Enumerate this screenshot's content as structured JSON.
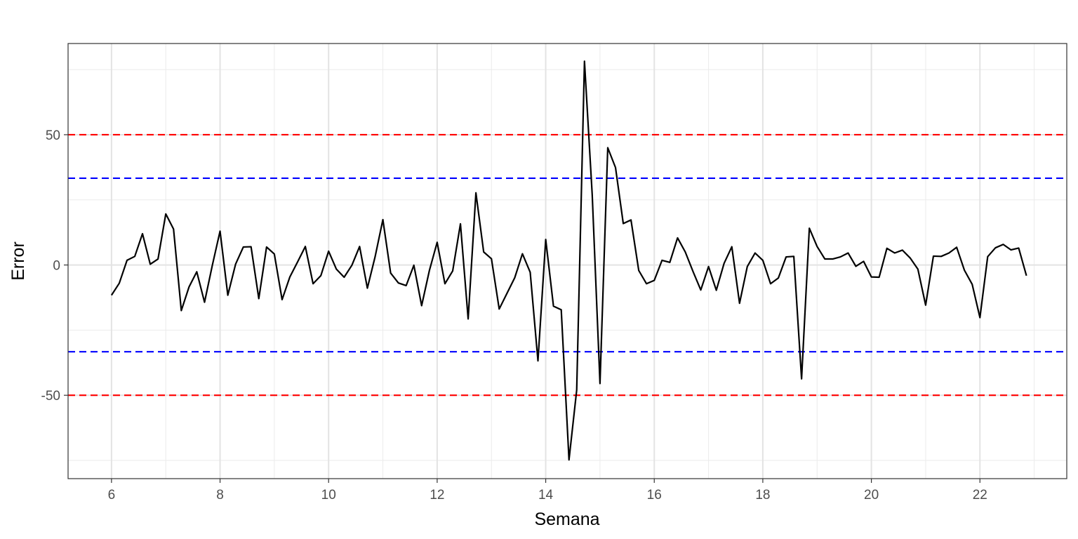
{
  "chart_data": {
    "type": "line",
    "title": "",
    "xlabel": "Semana",
    "ylabel": "Error",
    "xlim": [
      5.2,
      23.6
    ],
    "ylim": [
      -82,
      85
    ],
    "x_ticks": [
      6,
      8,
      10,
      12,
      14,
      16,
      18,
      20,
      22
    ],
    "y_ticks": [
      -50,
      0,
      50
    ],
    "grid": true,
    "legend": "none",
    "series": [
      {
        "color": "#000000",
        "x": [
          6.0,
          6.143,
          6.286,
          6.429,
          6.571,
          6.714,
          6.857,
          7.0,
          7.143,
          7.286,
          7.429,
          7.571,
          7.714,
          7.857,
          8.0,
          8.143,
          8.286,
          8.429,
          8.571,
          8.714,
          8.857,
          9.0,
          9.143,
          9.286,
          9.429,
          9.571,
          9.714,
          9.857,
          10.0,
          10.143,
          10.286,
          10.429,
          10.571,
          10.714,
          10.857,
          11.0,
          11.143,
          11.286,
          11.429,
          11.571,
          11.714,
          11.857,
          12.0,
          12.143,
          12.286,
          12.429,
          12.571,
          12.714,
          12.857,
          13.0,
          13.143,
          13.286,
          13.429,
          13.571,
          13.714,
          13.857,
          14.0,
          14.143,
          14.286,
          14.429,
          14.571,
          14.714,
          14.857,
          15.0,
          15.143,
          15.286,
          15.429,
          15.571,
          15.714,
          15.857,
          16.0,
          16.143,
          16.286,
          16.429,
          16.571,
          16.714,
          16.857,
          17.0,
          17.143,
          17.286,
          17.429,
          17.571,
          17.714,
          17.857,
          18.0,
          18.143,
          18.286,
          18.429,
          18.571,
          18.714,
          18.857,
          19.0,
          19.143,
          19.286,
          19.429,
          19.571,
          19.714,
          19.857,
          20.0,
          20.143,
          20.286,
          20.429,
          20.571,
          20.714,
          20.857,
          21.0,
          21.143,
          21.286,
          21.429,
          21.571,
          21.714,
          21.857,
          22.0,
          22.143,
          22.286,
          22.429,
          22.571,
          22.714,
          22.857
        ],
        "y": [
          -11.6,
          -7.0,
          1.8,
          3.3,
          12.0,
          0.3,
          2.3,
          19.6,
          13.8,
          -17.5,
          -8.4,
          -2.6,
          -14.3,
          -0.2,
          13.0,
          -11.6,
          0.3,
          6.9,
          7.0,
          -12.9,
          6.9,
          4.2,
          -13.3,
          -4.6,
          1.2,
          7.1,
          -7.2,
          -4.1,
          5.3,
          -1.6,
          -4.7,
          -0.1,
          7.1,
          -8.9,
          3.2,
          17.4,
          -3.1,
          -6.9,
          -7.9,
          -0.1,
          -15.6,
          -2.1,
          8.7,
          -7.2,
          -2.3,
          15.8,
          -20.7,
          27.7,
          5.0,
          2.4,
          -16.9,
          -10.9,
          -4.9,
          4.3,
          -2.8,
          -36.8,
          9.8,
          -15.8,
          -17.2,
          -74.8,
          -48.0,
          78.2,
          26.9,
          -45.5,
          45.0,
          37.4,
          15.9,
          17.3,
          -2.1,
          -7.2,
          -5.9,
          1.8,
          1.0,
          10.4,
          5.0,
          -2.5,
          -9.6,
          -0.6,
          -9.7,
          0.6,
          7.0,
          -14.7,
          -0.6,
          4.6,
          1.8,
          -7.2,
          -5.0,
          3.1,
          3.3,
          -43.7,
          14.1,
          7.1,
          2.3,
          2.3,
          3.1,
          4.6,
          -0.5,
          1.4,
          -4.6,
          -4.7,
          6.4,
          4.6,
          5.7,
          2.7,
          -1.6,
          -15.4,
          3.4,
          3.3,
          4.6,
          6.8,
          -2.0,
          -7.4,
          -20.2,
          3.2,
          6.6,
          7.9,
          5.8,
          6.5,
          -4.1
        ]
      }
    ],
    "reference_lines": [
      {
        "y": 50,
        "color": "#ff0000",
        "style": "dashed"
      },
      {
        "y": 33.3,
        "color": "#0000ff",
        "style": "dashed"
      },
      {
        "y": -33.3,
        "color": "#0000ff",
        "style": "dashed"
      },
      {
        "y": -50,
        "color": "#ff0000",
        "style": "dashed"
      }
    ]
  }
}
